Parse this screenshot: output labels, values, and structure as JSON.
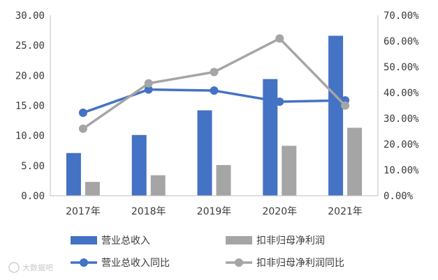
{
  "chart_data": {
    "type": "bar",
    "categories": [
      "2017年",
      "2018年",
      "2019年",
      "2020年",
      "2021年"
    ],
    "series": [
      {
        "name": "营业总收入",
        "type": "bar",
        "axis": "left",
        "color": "#4472C4",
        "values": [
          7.1,
          10.1,
          14.2,
          19.4,
          26.6
        ]
      },
      {
        "name": "扣非归母净利润",
        "type": "bar",
        "axis": "left",
        "color": "#A5A5A5",
        "values": [
          2.3,
          3.4,
          5.1,
          8.3,
          11.3
        ]
      },
      {
        "name": "营业总收入同比",
        "type": "line",
        "axis": "right",
        "color": "#4472C4",
        "values": [
          32.2,
          41.2,
          40.8,
          36.5,
          37.0
        ]
      },
      {
        "name": "扣非归母净利润同比",
        "type": "line",
        "axis": "right",
        "color": "#A5A5A5",
        "values": [
          26.0,
          43.6,
          48.0,
          61.0,
          35.0
        ]
      }
    ],
    "yleft_ticks": [
      "0.00",
      "5.00",
      "10.00",
      "15.00",
      "20.00",
      "25.00",
      "30.00"
    ],
    "yright_ticks": [
      "0.00%",
      "10.00%",
      "20.00%",
      "30.00%",
      "40.00%",
      "50.00%",
      "60.00%",
      "70.00%"
    ],
    "ylim_left": [
      0,
      30
    ],
    "ylim_right": [
      0,
      70
    ],
    "grid": false,
    "legend_position": "bottom",
    "title": "",
    "xlabel": "",
    "ylabel": ""
  },
  "watermark": "大数据吧"
}
